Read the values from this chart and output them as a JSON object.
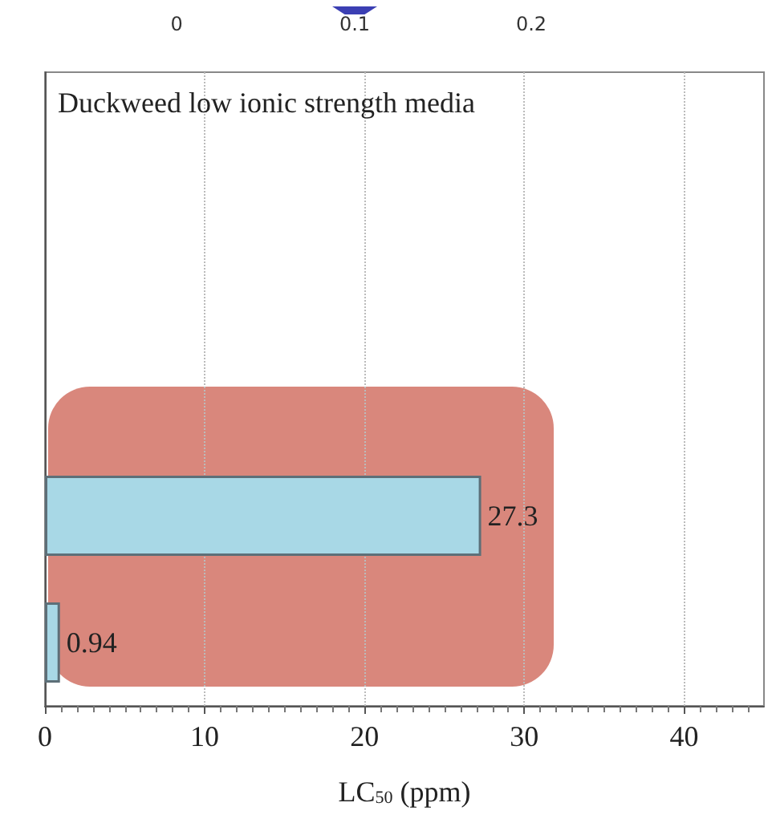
{
  "chart_data": [
    {
      "type": "other",
      "annotations": [
        "0",
        "0.1",
        "0.2"
      ]
    },
    {
      "type": "bar",
      "orientation": "horizontal",
      "title": "Duckweed low ionic strength media",
      "xlabel": "LC$_{50}$ (ppm)",
      "categories": [
        null,
        null,
        null,
        null,
        null
      ],
      "values": [
        null,
        null,
        null,
        27.3,
        0.94
      ],
      "color": "#a8d8e6",
      "xlim": [
        0,
        45
      ],
      "xticks": [
        0,
        10,
        20,
        30,
        40
      ],
      "grid": "x",
      "data_labels": true
    }
  ]
}
